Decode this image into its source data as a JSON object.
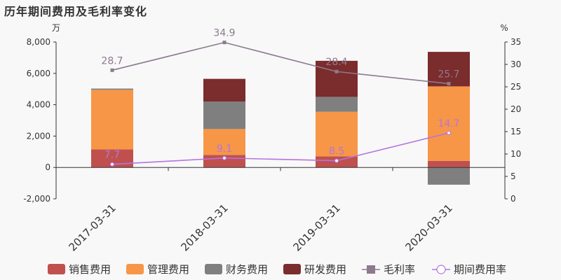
{
  "title": "历年期间费用及毛利率变化",
  "chart_data": {
    "type": "bar",
    "categories": [
      "2017-03-31",
      "2018-03-31",
      "2019-03-31",
      "2020-03-31"
    ],
    "y_left": {
      "unit": "万",
      "ylim": [
        -2000,
        8000
      ],
      "ticks": [
        -2000,
        0,
        2000,
        4000,
        6000,
        8000
      ],
      "tick_labels": [
        "-2,000",
        "0",
        "2,000",
        "4,000",
        "6,000",
        "8,000"
      ]
    },
    "y_right": {
      "unit": "%",
      "ylim": [
        0,
        35
      ],
      "ticks": [
        0,
        5,
        10,
        15,
        20,
        25,
        30,
        35
      ],
      "tick_labels": [
        "0",
        "5",
        "10",
        "15",
        "20",
        "25",
        "30",
        "35"
      ]
    },
    "bar_series": [
      {
        "name": "销售费用",
        "color": "#c0504d",
        "values": [
          1150,
          800,
          700,
          420
        ]
      },
      {
        "name": "管理费用",
        "color": "#f79646",
        "values": [
          3800,
          1650,
          2850,
          4750
        ]
      },
      {
        "name": "财务费用",
        "color": "#7f7f7f",
        "values": [
          80,
          1750,
          950,
          -1100
        ]
      },
      {
        "name": "研发费用",
        "color": "#7b2c2c",
        "values": [
          0,
          1450,
          2300,
          2200
        ]
      }
    ],
    "line_series": [
      {
        "name": "毛利率",
        "color": "#8d7a8e",
        "marker": "square",
        "values": [
          28.7,
          34.9,
          28.4,
          25.7
        ],
        "labels": [
          "28.7",
          "34.9",
          "28.4",
          "25.7"
        ]
      },
      {
        "name": "期间费用率",
        "color": "#b574e0",
        "marker": "circle",
        "values": [
          7.7,
          9.1,
          8.5,
          14.7
        ],
        "labels": [
          "7.7",
          "9.1",
          "8.5",
          "14.7"
        ]
      }
    ],
    "legend_position": "bottom"
  }
}
